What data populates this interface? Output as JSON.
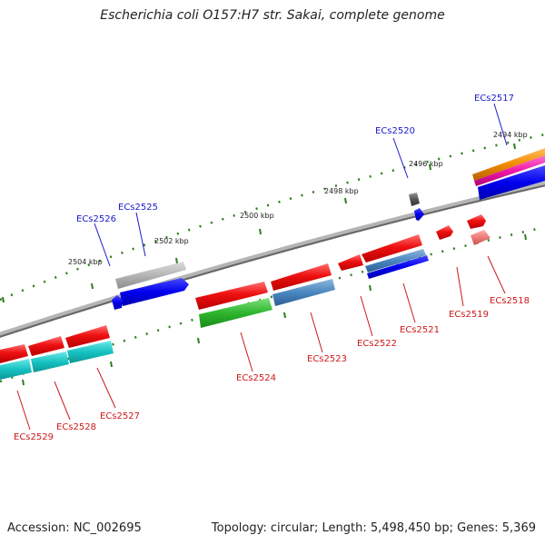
{
  "title": "Escherichia coli O157:H7 str. Sakai, complete genome",
  "footer": {
    "accession": "Accession: NC_002695",
    "summary": "Topology: circular; Length: 5,498,450 bp; Genes: 5,369"
  },
  "colors": {
    "backbone": "#8a8a8a",
    "tick": "#2e7d1f",
    "label_forward": "#1a1acc",
    "label_reverse": "#cc1a1a"
  },
  "kbp_ticks": [
    "2494 kbp",
    "2496 kbp",
    "2498 kbp",
    "2500 kbp",
    "2502 kbp",
    "2504 kbp"
  ],
  "genes": [
    {
      "id": "ECs2517",
      "strand": "forward"
    },
    {
      "id": "ECs2518",
      "strand": "reverse"
    },
    {
      "id": "ECs2519",
      "strand": "reverse"
    },
    {
      "id": "ECs2520",
      "strand": "forward"
    },
    {
      "id": "ECs2521",
      "strand": "reverse"
    },
    {
      "id": "ECs2522",
      "strand": "reverse"
    },
    {
      "id": "ECs2523",
      "strand": "reverse"
    },
    {
      "id": "ECs2524",
      "strand": "reverse"
    },
    {
      "id": "ECs2525",
      "strand": "forward"
    },
    {
      "id": "ECs2526",
      "strand": "forward"
    },
    {
      "id": "ECs2527",
      "strand": "reverse"
    },
    {
      "id": "ECs2528",
      "strand": "reverse"
    },
    {
      "id": "ECs2529",
      "strand": "reverse"
    }
  ]
}
